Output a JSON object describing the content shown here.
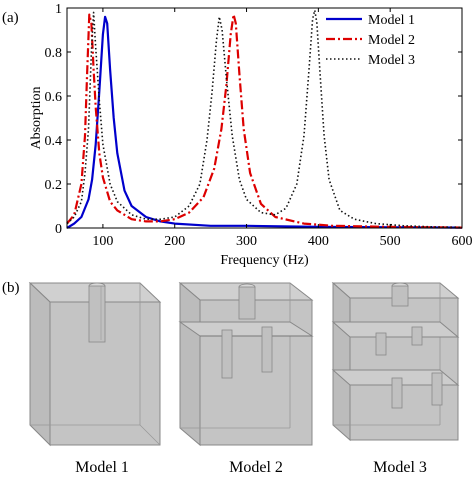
{
  "panel_a_label": "(a)",
  "panel_b_label": "(b)",
  "chart_data": {
    "type": "line",
    "title": "",
    "xlabel": "Frequency (Hz)",
    "ylabel": "Absorption",
    "xlim": [
      50,
      600
    ],
    "ylim": [
      0,
      1
    ],
    "xticks": [
      100,
      200,
      300,
      400,
      500,
      600
    ],
    "yticks": [
      0,
      0.2,
      0.4,
      0.6,
      0.8,
      1
    ],
    "xtick_labels": [
      "100",
      "200",
      "300",
      "400",
      "500",
      "600"
    ],
    "ytick_labels": [
      "0",
      "0.2",
      "0.4",
      "0.6",
      "0.8",
      "1"
    ],
    "grid": false,
    "legend_position": "top-right",
    "series": [
      {
        "name": "Model 1",
        "color": "#0000cc",
        "style": "solid",
        "x": [
          50,
          60,
          70,
          80,
          85,
          90,
          95,
          100,
          103,
          106,
          110,
          115,
          120,
          130,
          140,
          160,
          180,
          200,
          250,
          300,
          400,
          500,
          600
        ],
        "y": [
          0.0,
          0.02,
          0.05,
          0.13,
          0.22,
          0.38,
          0.62,
          0.88,
          0.96,
          0.93,
          0.72,
          0.5,
          0.34,
          0.17,
          0.1,
          0.05,
          0.03,
          0.02,
          0.01,
          0.01,
          0.005,
          0.003,
          0.002
        ]
      },
      {
        "name": "Model 2",
        "color": "#dd0000",
        "style": "dashdot",
        "x": [
          50,
          60,
          70,
          75,
          78,
          81,
          84,
          87,
          90,
          95,
          100,
          110,
          120,
          140,
          160,
          180,
          200,
          220,
          240,
          255,
          265,
          272,
          278,
          282,
          285,
          290,
          296,
          305,
          320,
          340,
          380,
          420,
          500,
          600
        ],
        "y": [
          0.02,
          0.06,
          0.2,
          0.42,
          0.7,
          0.97,
          0.93,
          0.72,
          0.55,
          0.34,
          0.23,
          0.12,
          0.08,
          0.04,
          0.03,
          0.03,
          0.04,
          0.07,
          0.14,
          0.27,
          0.45,
          0.65,
          0.88,
          0.97,
          0.93,
          0.7,
          0.45,
          0.25,
          0.11,
          0.05,
          0.02,
          0.01,
          0.005,
          0.002
        ]
      },
      {
        "name": "Model 3",
        "color": "#111111",
        "style": "dotted",
        "x": [
          50,
          60,
          70,
          75,
          80,
          84,
          87,
          90,
          95,
          100,
          110,
          120,
          140,
          160,
          180,
          200,
          220,
          235,
          245,
          252,
          258,
          262,
          266,
          272,
          280,
          290,
          300,
          320,
          340,
          355,
          370,
          380,
          387,
          392,
          395,
          398,
          402,
          408,
          415,
          430,
          450,
          480,
          520,
          560,
          600
        ],
        "y": [
          0.02,
          0.05,
          0.12,
          0.25,
          0.45,
          0.8,
          0.98,
          0.82,
          0.58,
          0.38,
          0.2,
          0.12,
          0.06,
          0.04,
          0.04,
          0.05,
          0.1,
          0.2,
          0.4,
          0.62,
          0.85,
          0.96,
          0.9,
          0.68,
          0.42,
          0.22,
          0.13,
          0.07,
          0.06,
          0.09,
          0.2,
          0.42,
          0.72,
          0.95,
          0.99,
          0.93,
          0.72,
          0.42,
          0.22,
          0.08,
          0.04,
          0.02,
          0.01,
          0.005,
          0.003
        ]
      }
    ]
  },
  "models": [
    {
      "label": "Model 1"
    },
    {
      "label": "Model 2"
    },
    {
      "label": "Model 3"
    }
  ]
}
